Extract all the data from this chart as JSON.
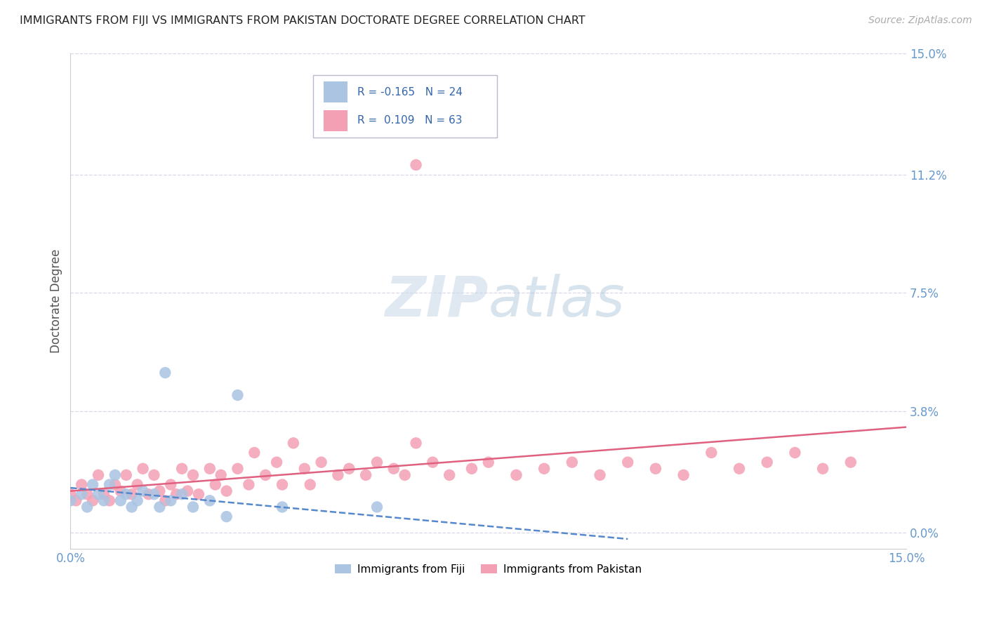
{
  "title": "IMMIGRANTS FROM FIJI VS IMMIGRANTS FROM PAKISTAN DOCTORATE DEGREE CORRELATION CHART",
  "source": "Source: ZipAtlas.com",
  "ylabel": "Doctorate Degree",
  "xlim": [
    0.0,
    0.15
  ],
  "ylim": [
    -0.005,
    0.15
  ],
  "ytick_values": [
    0.0,
    0.038,
    0.075,
    0.112,
    0.15
  ],
  "ytick_labels": [
    "0.0%",
    "3.8%",
    "7.5%",
    "11.2%",
    "15.0%"
  ],
  "xtick_values": [
    0.0,
    0.15
  ],
  "xtick_labels": [
    "0.0%",
    "15.0%"
  ],
  "legend_fiji_R": "-0.165",
  "legend_fiji_N": "24",
  "legend_pak_R": "0.109",
  "legend_pak_N": "63",
  "fiji_color": "#aac4e2",
  "pakistan_color": "#f4a0b4",
  "fiji_line_color": "#5588cc",
  "pakistan_line_color": "#e06080",
  "background_color": "#ffffff",
  "grid_color": "#d8d8e8",
  "tick_color": "#6699cc",
  "fiji_x": [
    0.0,
    0.002,
    0.003,
    0.004,
    0.005,
    0.006,
    0.007,
    0.008,
    0.009,
    0.01,
    0.011,
    0.012,
    0.013,
    0.015,
    0.016,
    0.017,
    0.018,
    0.02,
    0.022,
    0.025,
    0.028,
    0.03,
    0.038,
    0.055
  ],
  "fiji_y": [
    0.01,
    0.012,
    0.008,
    0.015,
    0.012,
    0.01,
    0.015,
    0.018,
    0.01,
    0.012,
    0.008,
    0.01,
    0.013,
    0.012,
    0.008,
    0.05,
    0.01,
    0.012,
    0.008,
    0.01,
    0.005,
    0.043,
    0.008,
    0.008
  ],
  "pak_x": [
    0.0,
    0.001,
    0.002,
    0.003,
    0.004,
    0.005,
    0.006,
    0.007,
    0.008,
    0.009,
    0.01,
    0.011,
    0.012,
    0.013,
    0.014,
    0.015,
    0.016,
    0.017,
    0.018,
    0.019,
    0.02,
    0.021,
    0.022,
    0.023,
    0.025,
    0.026,
    0.027,
    0.028,
    0.03,
    0.032,
    0.033,
    0.035,
    0.037,
    0.038,
    0.04,
    0.042,
    0.043,
    0.045,
    0.048,
    0.05,
    0.053,
    0.055,
    0.058,
    0.06,
    0.062,
    0.065,
    0.068,
    0.072,
    0.075,
    0.08,
    0.085,
    0.09,
    0.095,
    0.1,
    0.105,
    0.11,
    0.115,
    0.12,
    0.125,
    0.13,
    0.135,
    0.14,
    0.062
  ],
  "pak_y": [
    0.012,
    0.01,
    0.015,
    0.012,
    0.01,
    0.018,
    0.012,
    0.01,
    0.015,
    0.013,
    0.018,
    0.012,
    0.015,
    0.02,
    0.012,
    0.018,
    0.013,
    0.01,
    0.015,
    0.012,
    0.02,
    0.013,
    0.018,
    0.012,
    0.02,
    0.015,
    0.018,
    0.013,
    0.02,
    0.015,
    0.025,
    0.018,
    0.022,
    0.015,
    0.028,
    0.02,
    0.015,
    0.022,
    0.018,
    0.02,
    0.018,
    0.022,
    0.02,
    0.018,
    0.115,
    0.022,
    0.018,
    0.02,
    0.022,
    0.018,
    0.02,
    0.022,
    0.018,
    0.022,
    0.02,
    0.018,
    0.025,
    0.02,
    0.022,
    0.025,
    0.02,
    0.022,
    0.028
  ],
  "fiji_line_x0": 0.0,
  "fiji_line_x1": 0.1,
  "fiji_line_y0": 0.014,
  "fiji_line_y1": -0.002,
  "pak_line_x0": 0.0,
  "pak_line_x1": 0.15,
  "pak_line_y0": 0.013,
  "pak_line_y1": 0.033
}
